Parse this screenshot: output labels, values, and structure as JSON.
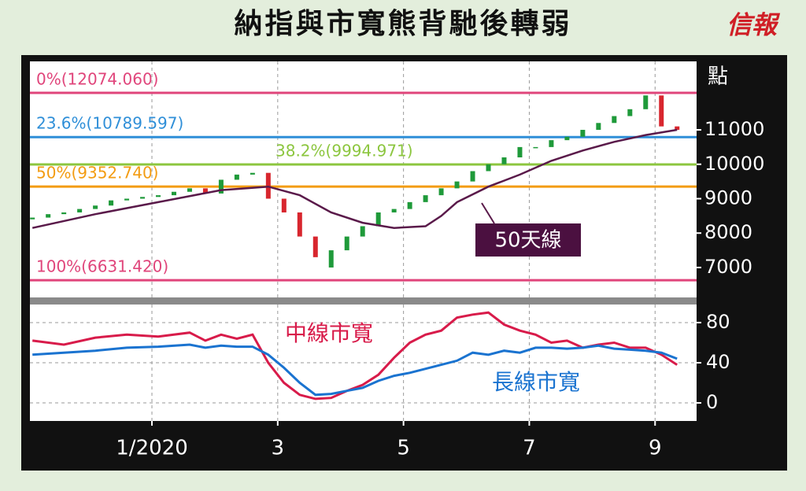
{
  "chart_data": [
    {
      "type": "candlestick",
      "title": "納指與市寬熊背馳後轉弱",
      "source": "信報",
      "unit": "點",
      "xlim": [
        -0.94,
        9.66
      ],
      "ylim": [
        6130,
        12990
      ],
      "yticks": [
        7000,
        8000,
        9000,
        10000,
        11000
      ],
      "up_color": "#1f9a3a",
      "down_color": "#d8262e",
      "candles": {
        "x": [
          -0.9,
          -0.65,
          -0.4,
          -0.15,
          0.1,
          0.35,
          0.6,
          0.85,
          1.1,
          1.35,
          1.6,
          1.85,
          2.1,
          2.35,
          2.6,
          2.85,
          3.1,
          3.35,
          3.6,
          3.85,
          4.1,
          4.35,
          4.6,
          4.85,
          5.1,
          5.35,
          5.6,
          5.85,
          6.1,
          6.35,
          6.6,
          6.85,
          7.1,
          7.35,
          7.6,
          7.85,
          8.1,
          8.35,
          8.6,
          8.85,
          9.1,
          9.35
        ],
        "open": [
          8400,
          8450,
          8550,
          8600,
          8700,
          8800,
          8950,
          9000,
          9050,
          9100,
          9200,
          9300,
          9150,
          9550,
          9700,
          9750,
          9000,
          8600,
          7900,
          7000,
          7500,
          7900,
          8200,
          8600,
          8700,
          8900,
          9100,
          9300,
          9500,
          9800,
          10000,
          10200,
          10500,
          10500,
          10700,
          10800,
          11000,
          11200,
          11400,
          11600,
          12000,
          11100
        ],
        "close": [
          8450,
          8550,
          8600,
          8700,
          8800,
          8950,
          9000,
          9050,
          9100,
          9200,
          9300,
          9150,
          9550,
          9700,
          9750,
          9000,
          8600,
          7900,
          7300,
          7500,
          7900,
          8200,
          8600,
          8700,
          8900,
          9100,
          9300,
          9500,
          9800,
          10000,
          10200,
          10500,
          10500,
          10700,
          10800,
          11000,
          11200,
          11400,
          11600,
          12000,
          11100,
          11000
        ]
      },
      "series": [
        {
          "name": "50天線",
          "color": "#5a1a4a",
          "x": [
            -0.9,
            0.1,
            1.1,
            2.1,
            2.85,
            3.35,
            3.85,
            4.35,
            4.85,
            5.35,
            5.6,
            5.85,
            6.35,
            6.85,
            7.35,
            7.85,
            8.35,
            8.85,
            9.35
          ],
          "values": [
            8150,
            8550,
            8900,
            9250,
            9350,
            9100,
            8600,
            8300,
            8150,
            8200,
            8500,
            8900,
            9350,
            9700,
            10100,
            10400,
            10650,
            10850,
            11000
          ]
        }
      ],
      "levels": [
        {
          "label": "0%(12074.060)",
          "value": 12074.06,
          "color": "#e0457b"
        },
        {
          "label": "23.6%(10789.597)",
          "value": 10789.597,
          "color": "#2f8fd8"
        },
        {
          "label": "38.2%(9994.971)",
          "value": 9994.971,
          "color": "#8cc63f"
        },
        {
          "label": "50%(9352.740)",
          "value": 9352.74,
          "color": "#f39c12"
        },
        {
          "label": "100%(6631.420)",
          "value": 6631.42,
          "color": "#e0457b"
        }
      ]
    },
    {
      "type": "line",
      "xlim": [
        -0.94,
        9.66
      ],
      "ylim": [
        -18,
        98
      ],
      "yticks": [
        0,
        40,
        80
      ],
      "grid": true,
      "xticks": [
        {
          "value": 1,
          "label": "1/2020"
        },
        3,
        5,
        7,
        9
      ],
      "x": [
        -0.9,
        -0.4,
        0.1,
        0.6,
        1.1,
        1.6,
        1.85,
        2.1,
        2.35,
        2.6,
        2.85,
        3.1,
        3.35,
        3.6,
        3.85,
        4.1,
        4.35,
        4.6,
        4.85,
        5.1,
        5.35,
        5.6,
        5.85,
        6.1,
        6.35,
        6.6,
        6.85,
        7.1,
        7.35,
        7.6,
        7.85,
        8.1,
        8.35,
        8.6,
        8.85,
        9.1,
        9.35
      ],
      "series": [
        {
          "name": "中線市寬",
          "color": "#d81b4a",
          "values": [
            62,
            58,
            65,
            68,
            66,
            70,
            62,
            68,
            64,
            68,
            40,
            20,
            8,
            4,
            5,
            12,
            18,
            28,
            45,
            60,
            68,
            72,
            85,
            88,
            90,
            78,
            72,
            68,
            60,
            62,
            55,
            58,
            60,
            55,
            55,
            48,
            38
          ]
        },
        {
          "name": "長線市寬",
          "color": "#1a73d0",
          "values": [
            48,
            50,
            52,
            55,
            56,
            58,
            55,
            57,
            56,
            56,
            48,
            35,
            20,
            8,
            9,
            12,
            15,
            22,
            27,
            30,
            34,
            38,
            42,
            50,
            48,
            52,
            50,
            55,
            55,
            54,
            55,
            57,
            54,
            53,
            52,
            50,
            44
          ]
        }
      ]
    }
  ]
}
